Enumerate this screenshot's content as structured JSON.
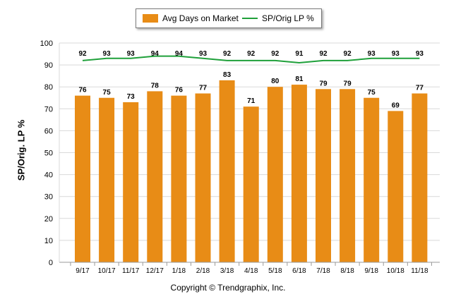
{
  "legend": {
    "bar_label": "Avg Days on Market",
    "line_label": "SP/Orig LP %"
  },
  "footer": {
    "copyright": "Copyright © Trendgraphix, Inc."
  },
  "colors": {
    "bar": "#e88c16",
    "line": "#1fa03a",
    "grid": "#d9d9d9"
  },
  "chart_data": {
    "type": "bar",
    "title": "",
    "xlabel": "",
    "ylabel": "SP/Orig. LP %",
    "ylim": [
      0,
      100
    ],
    "yticks": [
      0,
      10,
      20,
      30,
      40,
      50,
      60,
      70,
      80,
      90,
      100
    ],
    "grid": true,
    "legend_position": "top-center",
    "categories": [
      "9/17",
      "10/17",
      "11/17",
      "12/17",
      "1/18",
      "2/18",
      "3/18",
      "4/18",
      "5/18",
      "6/18",
      "7/18",
      "8/18",
      "9/18",
      "10/18",
      "11/18"
    ],
    "series": [
      {
        "name": "Avg Days on Market",
        "type": "bar",
        "values": [
          76,
          75,
          73,
          78,
          76,
          77,
          83,
          71,
          80,
          81,
          79,
          79,
          75,
          69,
          77
        ]
      },
      {
        "name": "SP/Orig LP %",
        "type": "line",
        "values": [
          92,
          93,
          93,
          94,
          94,
          93,
          92,
          92,
          92,
          91,
          92,
          92,
          93,
          93,
          93
        ]
      }
    ]
  }
}
